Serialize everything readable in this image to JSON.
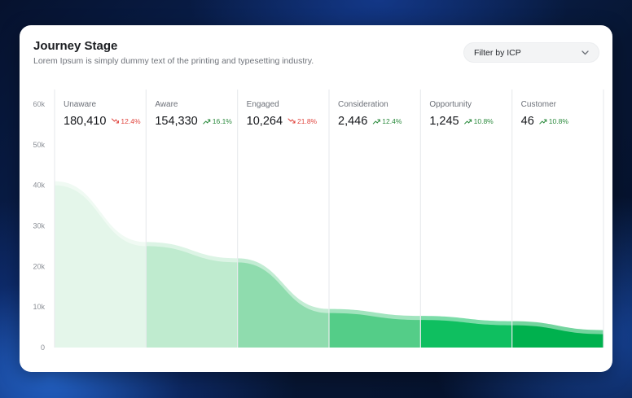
{
  "card": {
    "title": "Journey Stage",
    "subtitle": "Lorem Ipsum is simply dummy text of the printing and typesetting industry.",
    "filter_label": "Filter by ICP",
    "filter_icon": "chevron-down-icon"
  },
  "colors": {
    "increase": "#2a8a3c",
    "decrease": "#e0463f",
    "stage_fills": [
      "#e4f6ea",
      "#bfebcf",
      "#8fdcae",
      "#54cd88",
      "#0fbf60",
      "#00b14e"
    ],
    "area_top": "#9fe0b8"
  },
  "chart_data": {
    "type": "area",
    "ylim": [
      0,
      60000
    ],
    "yticks": [
      "0",
      "10k",
      "20k",
      "30k",
      "40k",
      "50k",
      "60k"
    ],
    "ytick_values": [
      0,
      10000,
      20000,
      30000,
      40000,
      50000,
      60000
    ],
    "stages": [
      {
        "name": "Unaware",
        "value": "180,410",
        "change": "12.4%",
        "direction": "down",
        "icon": "trend-down-icon"
      },
      {
        "name": "Aware",
        "value": "154,330",
        "change": "16.1%",
        "direction": "up",
        "icon": "trend-up-icon"
      },
      {
        "name": "Engaged",
        "value": "10,264",
        "change": "21.8%",
        "direction": "down",
        "icon": "trend-down-icon"
      },
      {
        "name": "Consideration",
        "value": "2,446",
        "change": "12.4%",
        "direction": "up",
        "icon": "trend-up-icon"
      },
      {
        "name": "Opportunity",
        "value": "1,245",
        "change": "10.8%",
        "direction": "up",
        "icon": "trend-up-icon"
      },
      {
        "name": "Customer",
        "value": "46",
        "change": "10.8%",
        "direction": "up",
        "icon": "trend-up-icon"
      }
    ],
    "curve": {
      "x": [
        0,
        1,
        2,
        3,
        4,
        5,
        6
      ],
      "y": [
        41000,
        26000,
        22000,
        9500,
        7800,
        6500,
        4300
      ]
    }
  }
}
